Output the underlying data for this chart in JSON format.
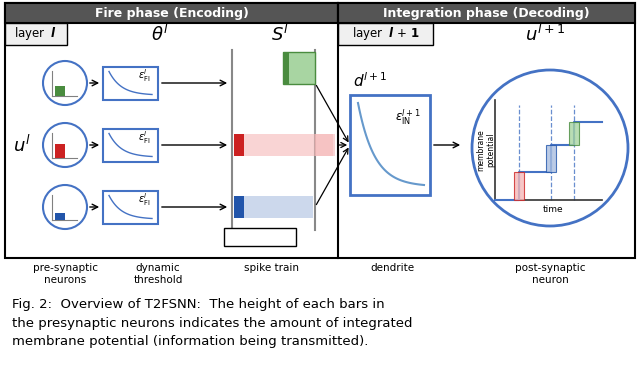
{
  "fig_width": 6.4,
  "fig_height": 3.65,
  "bg_color": "#ffffff",
  "header_bg": "#555555",
  "header_fg": "#ffffff",
  "subheader_bg": "#f0f0f0",
  "blue_color": "#4472C4",
  "green_bar": "#4a8c3f",
  "green_light": "#a8d5a2",
  "red_bar": "#cc2222",
  "red_light": "#f5b8b8",
  "blue_bar": "#2255aa",
  "blue_light": "#aabfe0",
  "caption": "Fig. 2:  Overview of T2FSNN:  The height of each bars in\nthe presynaptic neurons indicates the amount of integrated\nmembrane potential (information being transmitted).",
  "title_fire": "Fire phase (Encoding)",
  "title_integ": "Integration phase (Decoding)"
}
